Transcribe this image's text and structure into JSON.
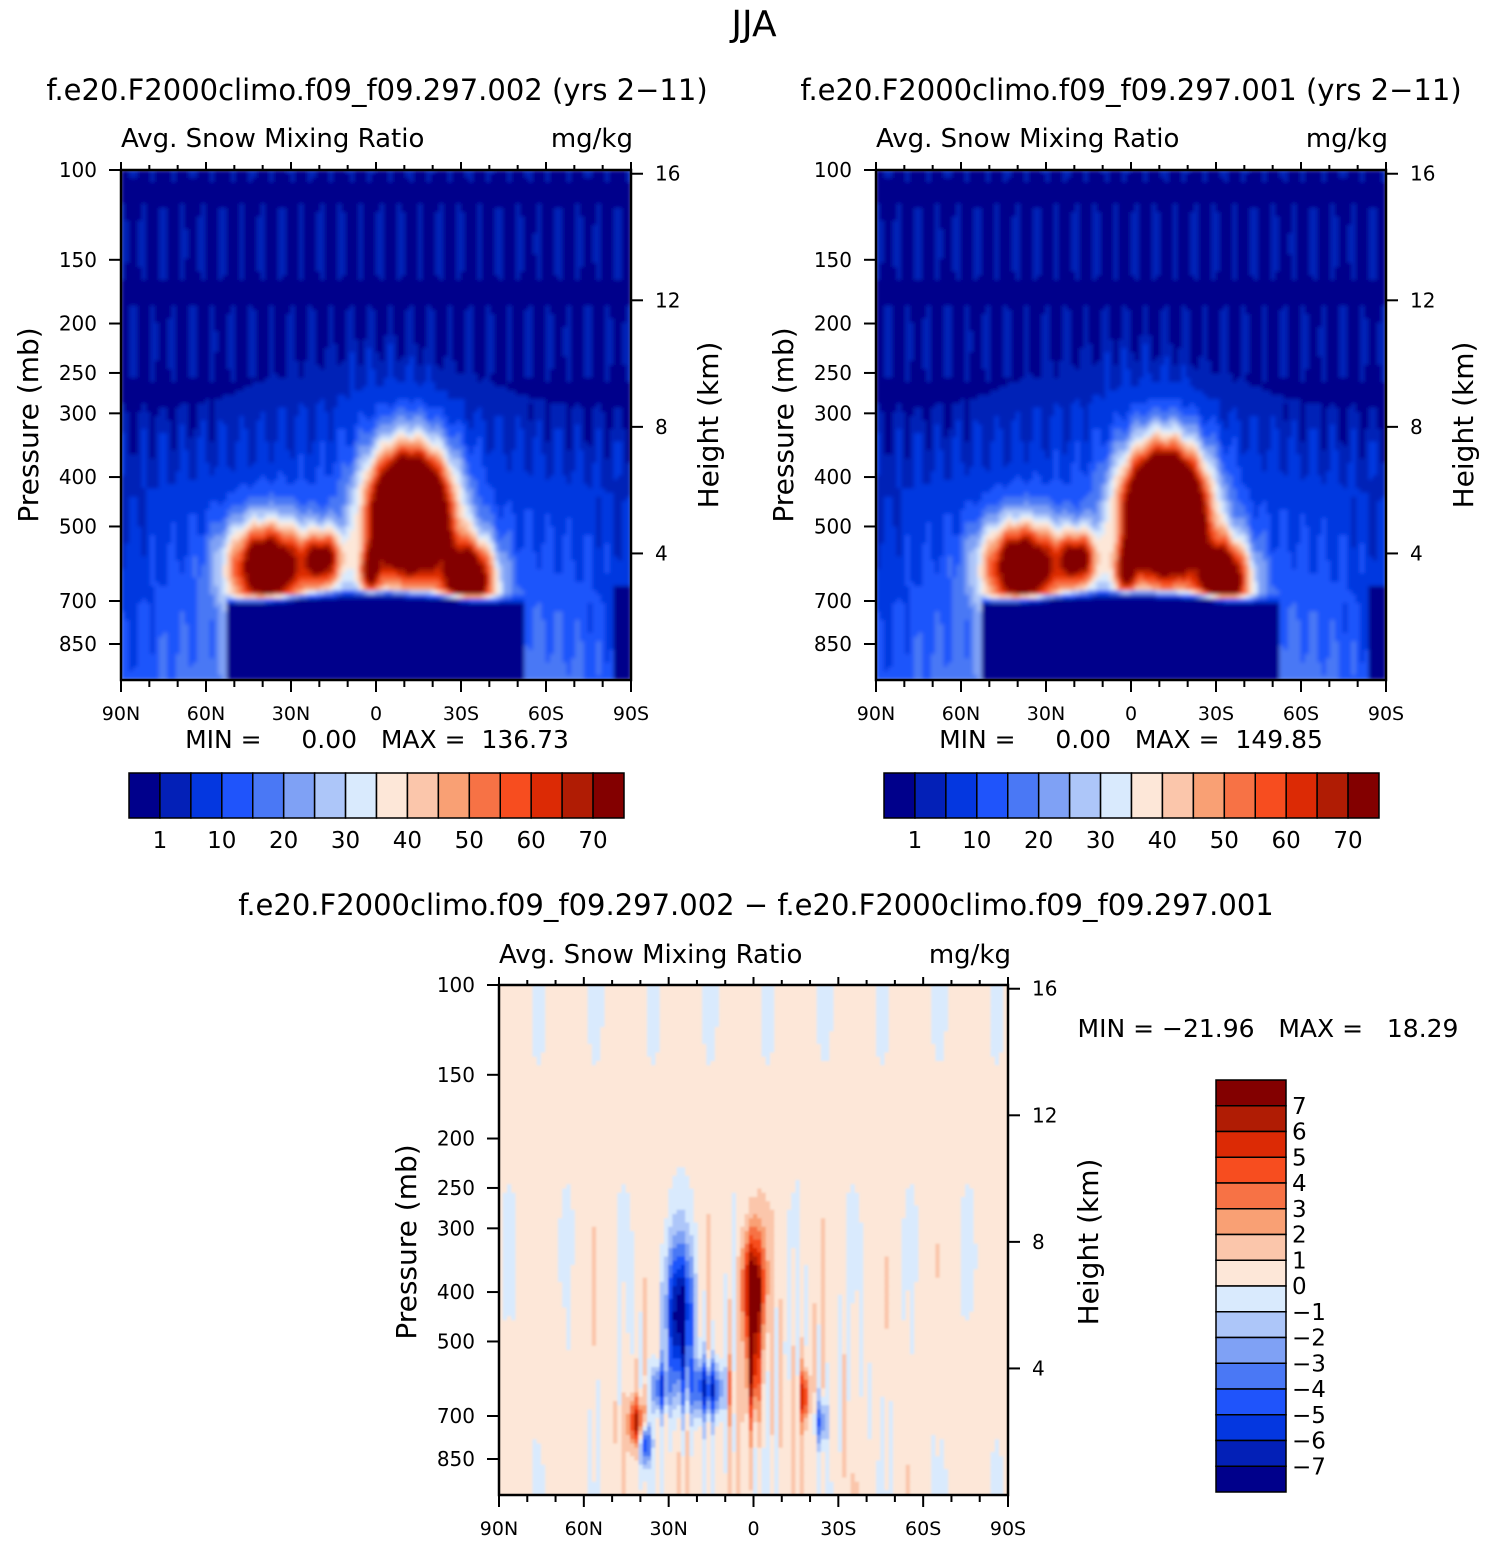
{
  "figure": {
    "season": "JJA",
    "diff_title": "f.e20.F2000climo.f09_f09.297.002 − f.e20.F2000climo.f09_f09.297.001"
  },
  "chart_data": [
    {
      "type": "heatmap",
      "id": "case002",
      "case_title": "f.e20.F2000climo.f09_f09.297.002 (yrs 2−11)",
      "title": "Avg. Snow Mixing Ratio",
      "units": "mg/kg",
      "xlabel": "",
      "ylabel": "Pressure (mb)",
      "y2label": "Height (km)",
      "x_ticks": [
        "90N",
        "60N",
        "30N",
        "0",
        "30S",
        "60S",
        "90S"
      ],
      "y_ticks": [
        "100",
        "150",
        "200",
        "250",
        "300",
        "400",
        "500",
        "700",
        "850"
      ],
      "y2_ticks": [
        "16",
        "12",
        "8",
        "4"
      ],
      "stats": "MIN =     0.00   MAX =  136.73",
      "colorbar_labels": [
        "1",
        "10",
        "20",
        "30",
        "40",
        "50",
        "60",
        "70"
      ],
      "palette": [
        "#00008b",
        "#0320b7",
        "#0437e0",
        "#1f54fb",
        "#4a78f5",
        "#7fa1f5",
        "#adc6f9",
        "#d9eafd",
        "#fde7d8",
        "#fbc6ab",
        "#f9a074",
        "#f77245",
        "#f74d1f",
        "#dc2a05",
        "#b01c04",
        "#830000"
      ],
      "peaks": [
        {
          "lat": -12,
          "p": 450,
          "value": 136.73
        },
        {
          "lat": 38,
          "p": 600,
          "value": 84
        },
        {
          "lat": -33,
          "p": 640,
          "value": 80
        }
      ]
    },
    {
      "type": "heatmap",
      "id": "case001",
      "case_title": "f.e20.F2000climo.f09_f09.297.001 (yrs 2−11)",
      "title": "Avg. Snow Mixing Ratio",
      "units": "mg/kg",
      "xlabel": "",
      "ylabel": "Pressure (mb)",
      "y2label": "Height (km)",
      "x_ticks": [
        "90N",
        "60N",
        "30N",
        "0",
        "30S",
        "60S",
        "90S"
      ],
      "y_ticks": [
        "100",
        "150",
        "200",
        "250",
        "300",
        "400",
        "500",
        "700",
        "850"
      ],
      "y2_ticks": [
        "16",
        "12",
        "8",
        "4"
      ],
      "stats": "MIN =     0.00   MAX =  149.85",
      "colorbar_labels": [
        "1",
        "10",
        "20",
        "30",
        "40",
        "50",
        "60",
        "70"
      ],
      "palette": [
        "#00008b",
        "#0320b7",
        "#0437e0",
        "#1f54fb",
        "#4a78f5",
        "#7fa1f5",
        "#adc6f9",
        "#d9eafd",
        "#fde7d8",
        "#fbc6ab",
        "#f9a074",
        "#f77245",
        "#f74d1f",
        "#dc2a05",
        "#b01c04",
        "#830000"
      ],
      "peaks": [
        {
          "lat": -12,
          "p": 450,
          "value": 149.85
        },
        {
          "lat": 38,
          "p": 600,
          "value": 82
        },
        {
          "lat": -33,
          "p": 640,
          "value": 78
        }
      ]
    },
    {
      "type": "heatmap",
      "id": "difference",
      "title": "Avg. Snow Mixing Ratio",
      "units": "mg/kg",
      "xlabel": "",
      "ylabel": "Pressure (mb)",
      "y2label": "Height (km)",
      "x_ticks": [
        "90N",
        "60N",
        "30N",
        "0",
        "30S",
        "60S",
        "90S"
      ],
      "y_ticks": [
        "100",
        "150",
        "200",
        "250",
        "300",
        "400",
        "500",
        "700",
        "850"
      ],
      "y2_ticks": [
        "16",
        "12",
        "8",
        "4"
      ],
      "stats": "MIN = −21.96   MAX =   18.29",
      "colorbar_labels": [
        "7",
        "6",
        "5",
        "4",
        "3",
        "2",
        "1",
        "0",
        "−1",
        "−2",
        "−3",
        "−4",
        "−5",
        "−6",
        "−7"
      ],
      "palette": [
        "#00008b",
        "#0320b7",
        "#0437e0",
        "#1f54fb",
        "#4a78f5",
        "#7fa1f5",
        "#adc6f9",
        "#d9eafd",
        "#fde7d8",
        "#fbc6ab",
        "#f9a074",
        "#f77245",
        "#f74d1f",
        "#dc2a05",
        "#b01c04",
        "#830000"
      ],
      "extremes": [
        {
          "lat": 26,
          "p": 470,
          "value": -21.96
        },
        {
          "lat": 0,
          "p": 380,
          "value": 18.29
        }
      ]
    }
  ]
}
